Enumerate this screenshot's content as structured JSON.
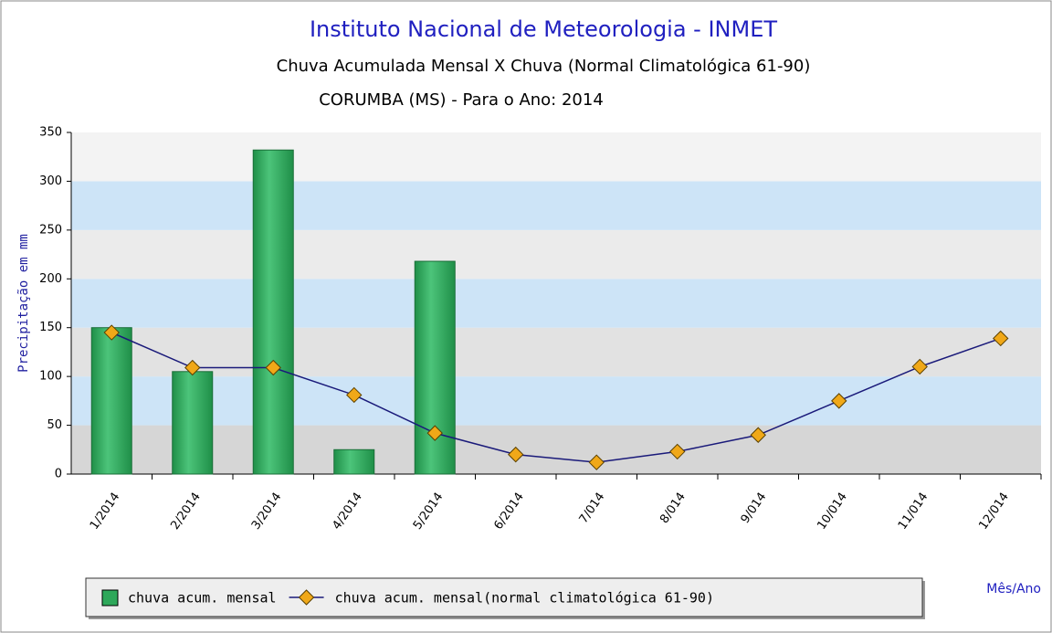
{
  "chart_data": {
    "type": "bar",
    "title": "Instituto Nacional de Meteorologia - INMET",
    "subtitle": "Chuva Acumulada Mensal X Chuva (Normal Climatológica 61-90)",
    "subtitle2": "CORUMBA (MS) - Para o Ano: 2014",
    "y_label": "Precipitação em mm",
    "x_label": "Mês/Ano",
    "categories": [
      "1/2014",
      "2/2014",
      "3/2014",
      "4/2014",
      "5/2014",
      "6/2014",
      "7/014",
      "8/014",
      "9/014",
      "10/014",
      "11/014",
      "12/014"
    ],
    "series": [
      {
        "name": "chuva acum. mensal",
        "type": "bar",
        "color": "#2ea85a",
        "values": [
          150,
          105,
          332,
          25,
          218,
          null,
          null,
          null,
          null,
          null,
          null,
          null
        ]
      },
      {
        "name": "chuva acum. mensal(normal climatológica 61-90)",
        "type": "line",
        "color": "#1a1a7a",
        "marker_color": "#f0a818",
        "values": [
          145,
          109,
          109,
          81,
          42,
          20,
          12,
          23,
          40,
          75,
          110,
          139
        ]
      }
    ],
    "ylim": [
      0,
      350
    ],
    "yticks": [
      0,
      50,
      100,
      150,
      200,
      250,
      300,
      350
    ],
    "legend": "bottom"
  }
}
